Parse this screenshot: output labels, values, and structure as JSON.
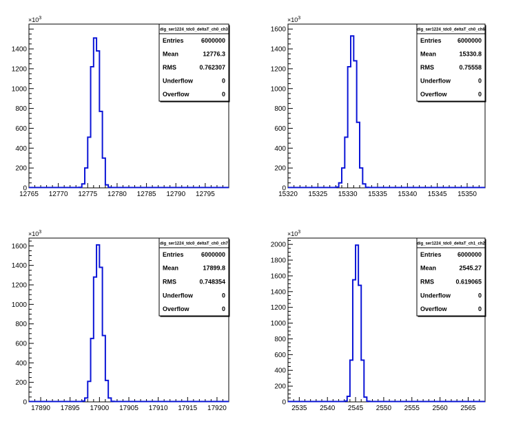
{
  "chart_data": [
    {
      "type": "bar",
      "title": "",
      "xlabel": "",
      "ylabel": "",
      "xlim": [
        12765,
        12799
      ],
      "ylim": [
        0,
        1650
      ],
      "y_multiplier_label": "×10",
      "y_exponent": "3",
      "x_ticks": [
        12765,
        12770,
        12775,
        12780,
        12785,
        12790,
        12795
      ],
      "y_ticks": [
        0,
        200,
        400,
        600,
        800,
        1000,
        1200,
        1400
      ],
      "bin_width": 0.5,
      "bins_start": 12773.5,
      "values": [
        5,
        40,
        200,
        510,
        1220,
        1510,
        1380,
        770,
        300,
        30,
        5
      ],
      "stats": {
        "name": "dig_ser1224_tdc0_deltaT_ch0_ch3",
        "rows": [
          {
            "label": "Entries",
            "value": "6000000"
          },
          {
            "label": "Mean",
            "value": "12776.3"
          },
          {
            "label": "RMS",
            "value": "0.762307"
          },
          {
            "label": "Underflow",
            "value": "0"
          },
          {
            "label": "Overflow",
            "value": "0"
          }
        ]
      }
    },
    {
      "type": "bar",
      "title": "",
      "xlabel": "",
      "ylabel": "",
      "xlim": [
        15320,
        15353
      ],
      "ylim": [
        0,
        1650
      ],
      "y_multiplier_label": "×10",
      "y_exponent": "3",
      "x_ticks": [
        15320,
        15325,
        15330,
        15335,
        15340,
        15345,
        15350
      ],
      "y_ticks": [
        0,
        200,
        400,
        600,
        800,
        1000,
        1200,
        1400,
        1600
      ],
      "bin_width": 0.5,
      "bins_start": 15328,
      "values": [
        8,
        50,
        200,
        510,
        1220,
        1530,
        1280,
        660,
        200,
        40,
        5
      ],
      "stats": {
        "name": "dig_ser1224_tdc0_deltaT_ch0_ch6",
        "rows": [
          {
            "label": "Entries",
            "value": "6000000"
          },
          {
            "label": "Mean",
            "value": "15330.8"
          },
          {
            "label": "RMS",
            "value": "0.75558"
          },
          {
            "label": "Underflow",
            "value": "0"
          },
          {
            "label": "Overflow",
            "value": "0"
          }
        ]
      }
    },
    {
      "type": "bar",
      "title": "",
      "xlabel": "",
      "ylabel": "",
      "xlim": [
        17888,
        17922
      ],
      "ylim": [
        0,
        1680
      ],
      "y_multiplier_label": "×10",
      "y_exponent": "3",
      "x_ticks": [
        17890,
        17895,
        17900,
        17905,
        17910,
        17915,
        17920
      ],
      "y_ticks": [
        0,
        200,
        400,
        600,
        800,
        1000,
        1200,
        1400,
        1600
      ],
      "bin_width": 0.5,
      "bins_start": 17897,
      "values": [
        8,
        40,
        210,
        650,
        1280,
        1610,
        1380,
        680,
        220,
        40,
        5
      ],
      "stats": {
        "name": "dig_ser1224_tdc0_deltaT_ch0_ch7",
        "rows": [
          {
            "label": "Entries",
            "value": "6000000"
          },
          {
            "label": "Mean",
            "value": "17899.8"
          },
          {
            "label": "RMS",
            "value": "0.748354"
          },
          {
            "label": "Underflow",
            "value": "0"
          },
          {
            "label": "Overflow",
            "value": "0"
          }
        ]
      }
    },
    {
      "type": "bar",
      "title": "",
      "xlabel": "",
      "ylabel": "",
      "xlim": [
        2533,
        2568
      ],
      "ylim": [
        0,
        2080
      ],
      "y_multiplier_label": "×10",
      "y_exponent": "3",
      "x_ticks": [
        2535,
        2540,
        2545,
        2550,
        2555,
        2560,
        2565
      ],
      "y_ticks": [
        0,
        200,
        400,
        600,
        800,
        1000,
        1200,
        1400,
        1600,
        1800,
        2000
      ],
      "bin_width": 0.5,
      "bins_start": 2543,
      "values": [
        10,
        70,
        530,
        1550,
        1990,
        1480,
        530,
        60,
        8
      ],
      "stats": {
        "name": "dig_ser1224_tdc0_deltaT_ch1_ch2",
        "rows": [
          {
            "label": "Entries",
            "value": "6000000"
          },
          {
            "label": "Mean",
            "value": "2545.27"
          },
          {
            "label": "RMS",
            "value": "0.619065"
          },
          {
            "label": "Underflow",
            "value": "0"
          },
          {
            "label": "Overflow",
            "value": "0"
          }
        ]
      }
    }
  ]
}
